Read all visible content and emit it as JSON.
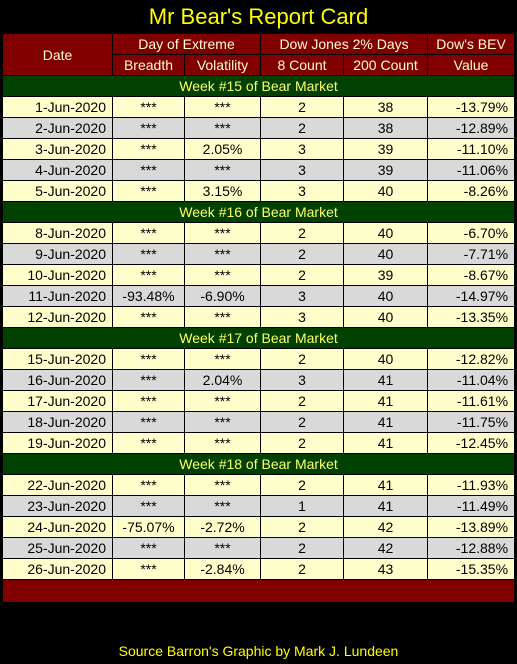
{
  "title": "Mr Bear's Report Card",
  "headers": {
    "date": "Date",
    "extreme": "Day of Extreme",
    "dow2": "Dow Jones 2% Days",
    "bev": "Dow's BEV",
    "breadth": "Breadth",
    "volatility": "Volatility",
    "count8": "8 Count",
    "count200": "200 Count",
    "value": "Value"
  },
  "weeks": [
    {
      "label": "Week #15 of Bear Market",
      "rows": [
        {
          "date": "1-Jun-2020",
          "breadth": "***",
          "volatility": "***",
          "c8": "2",
          "c200": "38",
          "bev": "-13.79%"
        },
        {
          "date": "2-Jun-2020",
          "breadth": "***",
          "volatility": "***",
          "c8": "2",
          "c200": "38",
          "bev": "-12.89%"
        },
        {
          "date": "3-Jun-2020",
          "breadth": "***",
          "volatility": "2.05%",
          "c8": "3",
          "c200": "39",
          "bev": "-11.10%"
        },
        {
          "date": "4-Jun-2020",
          "breadth": "***",
          "volatility": "***",
          "c8": "3",
          "c200": "39",
          "bev": "-11.06%"
        },
        {
          "date": "5-Jun-2020",
          "breadth": "***",
          "volatility": "3.15%",
          "c8": "3",
          "c200": "40",
          "bev": "-8.26%"
        }
      ]
    },
    {
      "label": "Week #16 of Bear Market",
      "rows": [
        {
          "date": "8-Jun-2020",
          "breadth": "***",
          "volatility": "***",
          "c8": "2",
          "c200": "40",
          "bev": "-6.70%"
        },
        {
          "date": "9-Jun-2020",
          "breadth": "***",
          "volatility": "***",
          "c8": "2",
          "c200": "40",
          "bev": "-7.71%"
        },
        {
          "date": "10-Jun-2020",
          "breadth": "***",
          "volatility": "***",
          "c8": "2",
          "c200": "39",
          "bev": "-8.67%"
        },
        {
          "date": "11-Jun-2020",
          "breadth": "-93.48%",
          "volatility": "-6.90%",
          "c8": "3",
          "c200": "40",
          "bev": "-14.97%"
        },
        {
          "date": "12-Jun-2020",
          "breadth": "***",
          "volatility": "***",
          "c8": "3",
          "c200": "40",
          "bev": "-13.35%"
        }
      ]
    },
    {
      "label": "Week #17 of Bear Market",
      "rows": [
        {
          "date": "15-Jun-2020",
          "breadth": "***",
          "volatility": "***",
          "c8": "2",
          "c200": "40",
          "bev": "-12.82%"
        },
        {
          "date": "16-Jun-2020",
          "breadth": "***",
          "volatility": "2.04%",
          "c8": "3",
          "c200": "41",
          "bev": "-11.04%"
        },
        {
          "date": "17-Jun-2020",
          "breadth": "***",
          "volatility": "***",
          "c8": "2",
          "c200": "41",
          "bev": "-11.61%"
        },
        {
          "date": "18-Jun-2020",
          "breadth": "***",
          "volatility": "***",
          "c8": "2",
          "c200": "41",
          "bev": "-11.75%"
        },
        {
          "date": "19-Jun-2020",
          "breadth": "***",
          "volatility": "***",
          "c8": "2",
          "c200": "41",
          "bev": "-12.45%"
        }
      ]
    },
    {
      "label": "Week #18 of Bear Market",
      "rows": [
        {
          "date": "22-Jun-2020",
          "breadth": "***",
          "volatility": "***",
          "c8": "2",
          "c200": "41",
          "bev": "-11.93%"
        },
        {
          "date": "23-Jun-2020",
          "breadth": "***",
          "volatility": "***",
          "c8": "1",
          "c200": "41",
          "bev": "-11.49%"
        },
        {
          "date": "24-Jun-2020",
          "breadth": "-75.07%",
          "volatility": "-2.72%",
          "c8": "2",
          "c200": "42",
          "bev": "-13.89%"
        },
        {
          "date": "25-Jun-2020",
          "breadth": "***",
          "volatility": "***",
          "c8": "2",
          "c200": "42",
          "bev": "-12.88%"
        },
        {
          "date": "26-Jun-2020",
          "breadth": "***",
          "volatility": "-2.84%",
          "c8": "2",
          "c200": "43",
          "bev": "-15.35%"
        }
      ]
    }
  ],
  "footer": "Source Barron's  Graphic by Mark J. Lundeen"
}
